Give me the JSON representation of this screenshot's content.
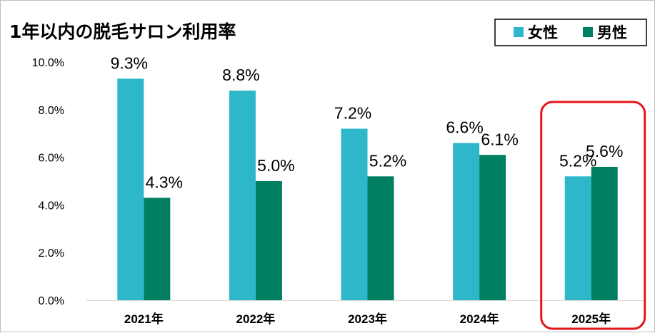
{
  "chart_data": {
    "type": "bar",
    "title": "1年以内の脱毛サロン利用率",
    "categories": [
      "2021年",
      "2022年",
      "2023年",
      "2024年",
      "2025年"
    ],
    "series": [
      {
        "name": "女性",
        "color": "#2db7c9",
        "values": [
          9.3,
          8.8,
          7.2,
          6.6,
          5.2
        ],
        "labels": [
          "9.3%",
          "8.8%",
          "7.2%",
          "6.6%",
          "5.2%"
        ]
      },
      {
        "name": "男性",
        "color": "#007f61",
        "values": [
          4.3,
          5.0,
          5.2,
          6.1,
          5.6
        ],
        "labels": [
          "4.3%",
          "5.0%",
          "5.2%",
          "6.1%",
          "5.6%"
        ]
      }
    ],
    "ylim": [
      0,
      10
    ],
    "y_ticks": [
      {
        "value": 0,
        "label": "0.0%"
      },
      {
        "value": 2,
        "label": "2.0%"
      },
      {
        "value": 4,
        "label": "4.0%"
      },
      {
        "value": 6,
        "label": "6.0%"
      },
      {
        "value": 8,
        "label": "8.0%"
      },
      {
        "value": 10,
        "label": "10.0%"
      }
    ],
    "grid": false,
    "legend_position": "top-right",
    "highlight": {
      "category": "2025年",
      "color": "#e8141b"
    }
  }
}
